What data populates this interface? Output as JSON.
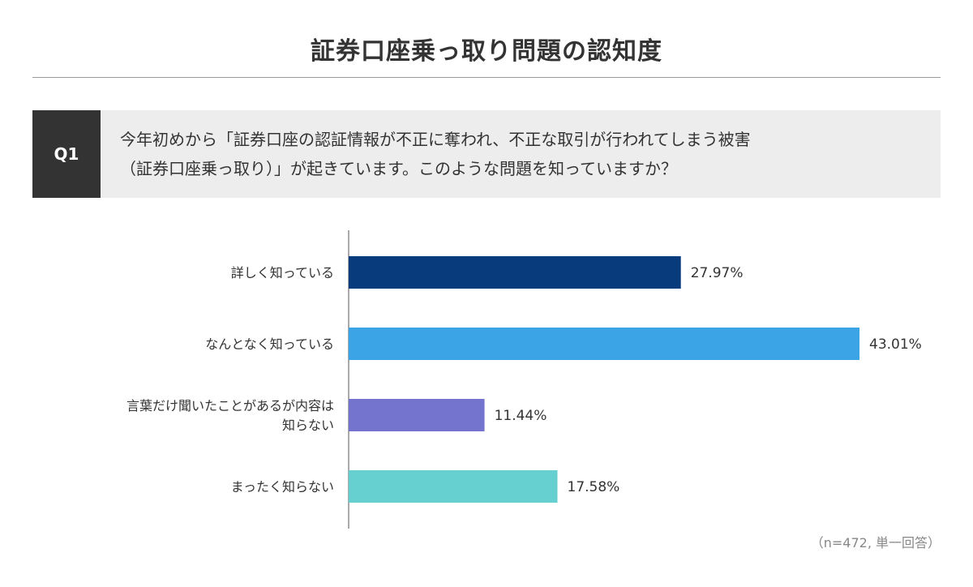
{
  "title": "証券口座乗っ取り問題の認知度",
  "question": {
    "label": "Q1",
    "line1": "今年初めから「証券口座の認証情報が不正に奪われ、不正な取引が行われてしまう被害",
    "line2": "（証券口座乗っ取り）」が起きています。このような問題を知っていますか？"
  },
  "note": "（n=472, 単一回答）",
  "chart_data": {
    "type": "bar",
    "orientation": "horizontal",
    "categories": [
      [
        "詳しく知っている"
      ],
      [
        "なんとなく知っている"
      ],
      [
        "言葉だけ聞いたことがあるが内容は",
        "知らない"
      ],
      [
        "まったく知らない"
      ]
    ],
    "values": [
      27.97,
      43.01,
      11.44,
      17.58
    ],
    "value_labels": [
      "27.97%",
      "43.01%",
      "11.44%",
      "17.58%"
    ],
    "colors": [
      "#073b7c",
      "#3aa4e6",
      "#7474ce",
      "#66cfcf"
    ],
    "xlim": [
      0,
      43.01
    ],
    "unit": "%",
    "grid": false,
    "legend": "none"
  }
}
